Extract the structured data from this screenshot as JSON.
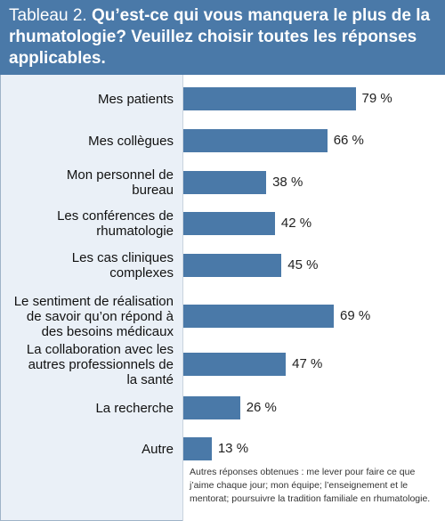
{
  "header": {
    "prefix": "Tableau 2.",
    "title_line1": "Qu’est-ce qui vous manquera le plus de la",
    "title_line2": "rhumatologie? Veuillez choisir toutes les réponses",
    "title_line3": "applicables."
  },
  "chart_data": {
    "type": "bar",
    "orientation": "horizontal",
    "title": "Qu’est-ce qui vous manquera le plus de la rhumatologie? Veuillez choisir toutes les réponses applicables.",
    "categories": [
      "Mes patients",
      "Mes collègues",
      "Mon personnel de bureau",
      "Les conférences de rhumatologie",
      "Les cas cliniques complexes",
      "Le sentiment de réalisation de savoir qu’on répond à des besoins médicaux",
      "La collaboration avec les autres professionnels de la santé",
      "La recherche",
      "Autre"
    ],
    "category_lines": [
      [
        "Mes patients"
      ],
      [
        "Mes collègues"
      ],
      [
        "Mon personnel de",
        "bureau"
      ],
      [
        "Les conférences de",
        "rhumatologie"
      ],
      [
        "Les cas cliniques",
        "complexes"
      ],
      [
        "Le sentiment de réalisation",
        "de savoir qu’on répond à",
        "des besoins médicaux"
      ],
      [
        "La collaboration avec les",
        "autres professionnels de",
        "la santé"
      ],
      [
        "La recherche"
      ],
      [
        "Autre"
      ]
    ],
    "values": [
      79,
      66,
      38,
      42,
      45,
      69,
      47,
      26,
      13
    ],
    "value_labels": [
      "79 %",
      "66 %",
      "38 %",
      "42 %",
      "45 %",
      "69 %",
      "47 %",
      "26 %",
      "13 %"
    ],
    "unit": "%",
    "xlim": [
      0,
      100
    ],
    "grid": false,
    "bar_color": "#4a79a8"
  },
  "footnote": "Autres réponses obtenues : me lever pour faire ce que j’aime chaque jour; mon équipe; l’enseignement et le mentorat; poursuivre la tradition familiale en rhumatologie.",
  "colors": {
    "header_bg": "#4a79a8",
    "panel_bg": "#eaf0f7",
    "plot_bg": "#ffffff",
    "bar": "#4a79a8"
  }
}
